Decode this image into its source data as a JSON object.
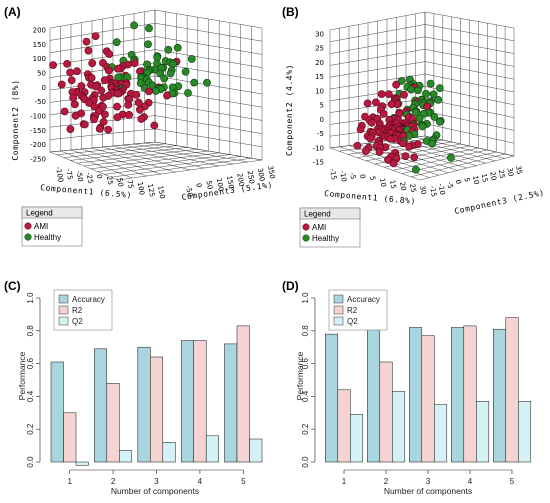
{
  "panels": [
    {
      "label": "(A)"
    },
    {
      "label": "(B)"
    },
    {
      "label": "(C)"
    },
    {
      "label": "(D)"
    }
  ],
  "chart_data": [
    {
      "type": "scatter",
      "panel": "(A)",
      "xlabel": "Component1 (6.5%)",
      "ylabel": "Component2 (8%)",
      "zlabel": "Component3 (5.1%)",
      "y_ticks": [
        "200",
        "150",
        "100",
        "50",
        "0",
        "-50",
        "-100",
        "-150",
        "-200",
        "-250"
      ],
      "x_ticks": [
        "-100",
        "-75",
        "-50",
        "-25",
        "0",
        "25",
        "50",
        "75",
        "100",
        "125",
        "150"
      ],
      "z_ticks": [
        "-50",
        "0",
        "50",
        "100",
        "150",
        "200",
        "250",
        "300",
        "350"
      ],
      "legend_title": "Legend",
      "series": [
        {
          "name": "AMI",
          "color": "#b8193f"
        },
        {
          "name": "Healthy",
          "color": "#2a8a2a"
        }
      ]
    },
    {
      "type": "scatter",
      "panel": "(B)",
      "xlabel": "Component1 (6.8%)",
      "ylabel": "Component2 (4.4%)",
      "zlabel": "Component3 (2.5%)",
      "y_ticks": [
        "30",
        "25",
        "20",
        "15",
        "10",
        "5",
        "0",
        "-5",
        "-10",
        "-15"
      ],
      "x_ticks": [
        "-15",
        "-10",
        "-5",
        "0",
        "5",
        "10",
        "15",
        "20",
        "25",
        "30"
      ],
      "z_ticks": [
        "-15",
        "-10",
        "-5",
        "0",
        "5",
        "10",
        "15",
        "20",
        "25",
        "30",
        "35"
      ],
      "legend_title": "Legend",
      "series": [
        {
          "name": "AMI",
          "color": "#b8193f"
        },
        {
          "name": "Healthy",
          "color": "#2a8a2a"
        }
      ]
    },
    {
      "type": "bar",
      "panel": "(C)",
      "categories": [
        "1",
        "2",
        "3",
        "4",
        "5"
      ],
      "series": [
        {
          "name": "Accuracy",
          "values": [
            0.61,
            0.69,
            0.7,
            0.74,
            0.72
          ],
          "color": "#a9d5de"
        },
        {
          "name": "R2",
          "values": [
            0.3,
            0.48,
            0.64,
            0.74,
            0.83
          ],
          "color": "#f5d3d3"
        },
        {
          "name": "Q2",
          "values": [
            -0.02,
            0.07,
            0.12,
            0.16,
            0.14
          ],
          "color": "#d6f1f5"
        }
      ],
      "xlabel": "Number of components",
      "ylabel": "Performance",
      "ylim": [
        0,
        1.0
      ],
      "y_ticks": [
        "0.0",
        "0.2",
        "0.4",
        "0.6",
        "0.8",
        "1.0"
      ],
      "legend_placement": "top-left"
    },
    {
      "type": "bar",
      "panel": "(D)",
      "categories": [
        "1",
        "2",
        "3",
        "4",
        "5"
      ],
      "series": [
        {
          "name": "Accuracy",
          "values": [
            0.78,
            0.85,
            0.82,
            0.82,
            0.81
          ],
          "color": "#a9d5de"
        },
        {
          "name": "R2",
          "values": [
            0.44,
            0.61,
            0.77,
            0.83,
            0.88
          ],
          "color": "#f5d3d3"
        },
        {
          "name": "Q2",
          "values": [
            0.29,
            0.43,
            0.35,
            0.37,
            0.37
          ],
          "color": "#d6f1f5"
        }
      ],
      "xlabel": "Number of components",
      "ylabel": "Performance",
      "ylim": [
        0,
        1.0
      ],
      "y_ticks": [
        "0.0",
        "0.2",
        "0.4",
        "0.6",
        "0.8",
        "1.0"
      ],
      "legend_placement": "top-left"
    }
  ]
}
